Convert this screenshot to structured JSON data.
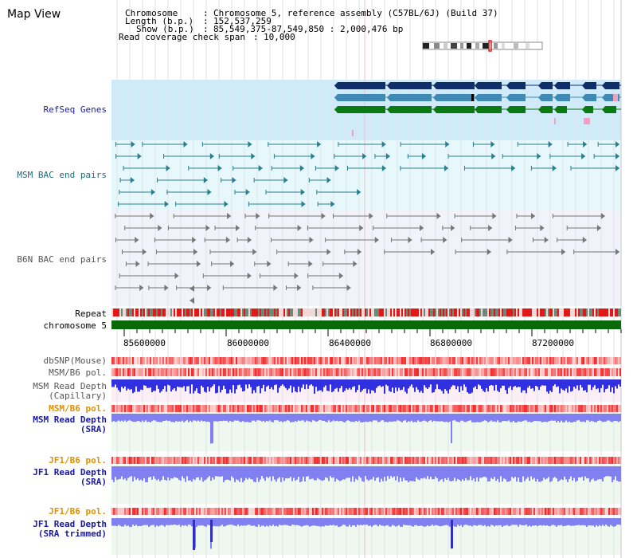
{
  "header": {
    "title": "Map View",
    "chromosome_label": "Chromosome",
    "chromosome_value": "Chromosome 5, reference assembly (C57BL/6J) (Build 37)",
    "length_label": "Length (b.p.)",
    "length_value": "152,537,259",
    "show_label": "Show (b.p.)",
    "show_value": "85,549,375-87,549,850 : 2,000,476 bp",
    "span_label": "Read coverage check span",
    "span_value": "10,000"
  },
  "tracks": {
    "refseq": "RefSeq Genes",
    "msm_bac": "MSM BAC end pairs",
    "b6n_bac": "B6N BAC end pairs",
    "repeat": "Repeat",
    "chromosome": "chromosome 5",
    "dbsnp": "dbSNP(Mouse)",
    "msm_b6_pol_1": "MSM/B6 pol.",
    "msm_rd_cap_1": "MSM Read Depth",
    "msm_rd_cap_2": "(Capillary)",
    "msm_b6_pol_2": "MSM/B6 pol.",
    "msm_rd_sra_1": "MSM Read Depth",
    "msm_rd_sra_2": "(SRA)",
    "jf1_b6_pol_1": "JF1/B6 pol.",
    "jf1_rd_sra_1": "JF1 Read Depth",
    "jf1_rd_sra_2": "(SRA)",
    "jf1_b6_pol_2": "JF1/B6 pol.",
    "jf1_rd_trim_1": "JF1 Read Depth",
    "jf1_rd_trim_2": "(SRA trimmed)"
  },
  "axis": {
    "ticks": [
      "85600000",
      "86000000",
      "86400000",
      "86800000",
      "87200000"
    ]
  },
  "colors": {
    "refseq_bg": "#cfeaf8",
    "msm_bg": "#e6f8fb",
    "b6n_bg": "#f2f2fa",
    "gene_navy": "#0e2f6a",
    "gene_steel": "#3e8ab5",
    "gene_green": "#0a7a12",
    "msm_line": "#2a7f8f",
    "b6n_line": "#777777",
    "chromosome_bar": "#0a6a0a",
    "depth_blue": "#3030e0",
    "depth_light": "#8080f0",
    "pol_red": "#f05050"
  }
}
